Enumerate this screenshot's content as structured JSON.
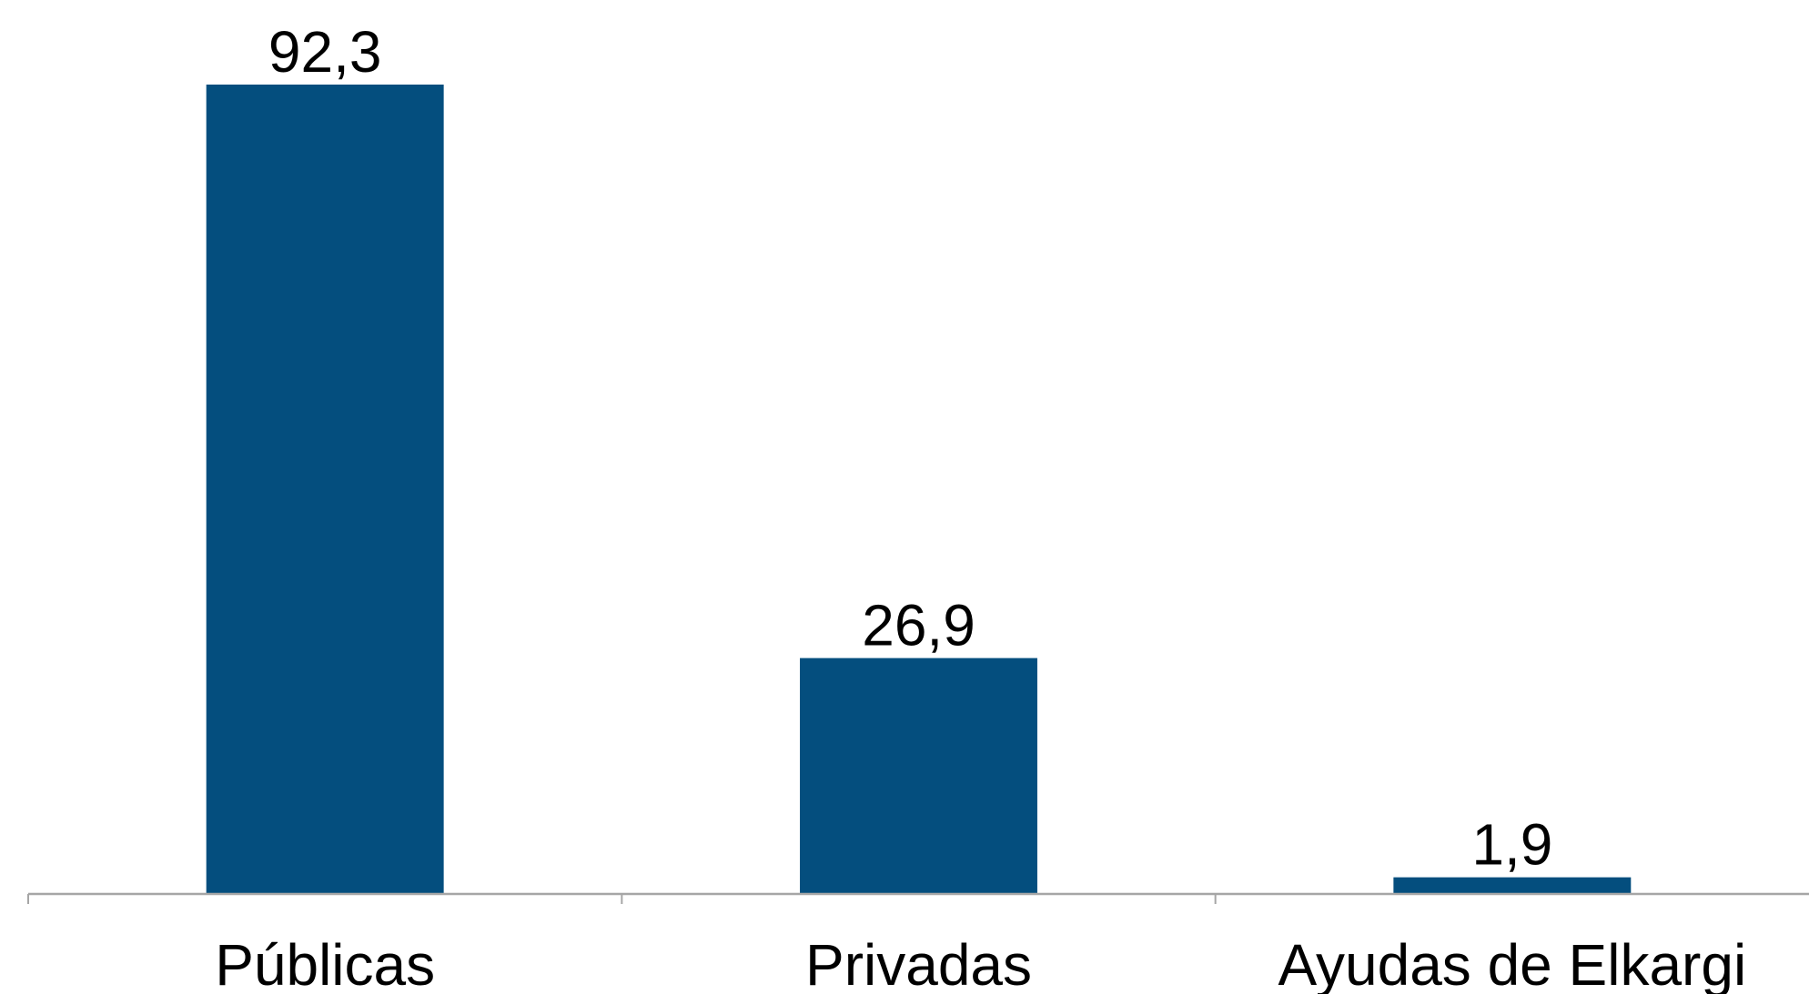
{
  "chart_data": {
    "type": "bar",
    "categories": [
      "Públicas",
      "Privadas",
      "Ayudas de Elkargi"
    ],
    "values": [
      92.3,
      26.9,
      1.9
    ],
    "value_labels": [
      "92,3",
      "26,9",
      "1,9"
    ],
    "title": "",
    "xlabel": "",
    "ylabel": "",
    "ylim": [
      0,
      92.3
    ],
    "grid": false,
    "legend": "none",
    "bar_color": "#044e7e",
    "axis_color": "#a6a6a6"
  }
}
